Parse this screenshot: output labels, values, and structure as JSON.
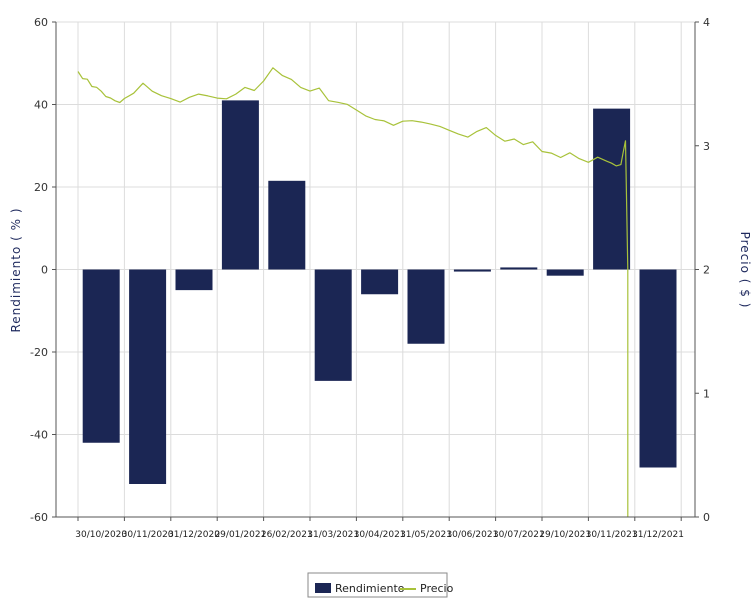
{
  "chart_data": {
    "type": "bar",
    "title": "",
    "ylabel": "Rendimiento (%)",
    "ylabel_display": "Rendimiento ( % )",
    "y2label": "Precio ($)",
    "y2label_display": "Precio ( $ )",
    "ylim": [
      -60,
      60
    ],
    "y2lim": [
      0,
      4
    ],
    "yticks": [
      -60,
      -40,
      -20,
      0,
      20,
      40,
      60
    ],
    "y2ticks": [
      0,
      1,
      2,
      3,
      4
    ],
    "grid": true,
    "legend_position": "bottom-center",
    "categories": [
      "30/10/2020",
      "30/11/2020",
      "31/12/2020",
      "29/01/2021",
      "26/02/2021",
      "31/03/2021",
      "30/04/2021",
      "31/05/2021",
      "30/06/2021",
      "30/07/2021",
      "29/10/2021",
      "30/11/2021",
      "31/12/2021"
    ],
    "series": [
      {
        "name": "Rendimiento",
        "type": "bar",
        "axis": "left",
        "color": "#1b2654",
        "values": [
          -42,
          -52,
          -5,
          41,
          21.5,
          -27,
          -6,
          -18,
          -0.5,
          0.5,
          -1.5,
          39,
          -48
        ]
      },
      {
        "name": "Precio",
        "type": "line",
        "axis": "right",
        "color": "#a8c23a",
        "x": [
          0,
          0.1,
          0.2,
          0.3,
          0.4,
          0.5,
          0.6,
          0.7,
          0.8,
          0.9,
          1.0,
          1.2,
          1.4,
          1.6,
          1.8,
          2.0,
          2.2,
          2.4,
          2.6,
          2.8,
          3.0,
          3.2,
          3.4,
          3.6,
          3.8,
          4.0,
          4.2,
          4.4,
          4.6,
          4.8,
          5.0,
          5.2,
          5.4,
          5.6,
          5.8,
          6.0,
          6.2,
          6.4,
          6.6,
          6.8,
          7.0,
          7.2,
          7.4,
          7.6,
          7.8,
          8.0,
          8.2,
          8.4,
          8.6,
          8.8,
          9.0,
          9.2,
          9.4,
          9.6,
          9.8,
          10.0,
          10.2,
          10.4,
          10.6,
          10.8,
          11.0,
          11.2,
          11.4,
          11.5,
          11.6,
          11.7,
          11.75,
          11.8,
          11.85,
          11.85
        ],
        "values": [
          3.6,
          3.55,
          3.53,
          3.48,
          3.47,
          3.44,
          3.4,
          3.38,
          3.36,
          3.35,
          3.39,
          3.43,
          3.5,
          3.45,
          3.41,
          3.38,
          3.36,
          3.39,
          3.42,
          3.4,
          3.39,
          3.38,
          3.42,
          3.47,
          3.44,
          3.52,
          3.63,
          3.56,
          3.53,
          3.47,
          3.45,
          3.47,
          3.36,
          3.35,
          3.33,
          3.29,
          3.25,
          3.22,
          3.2,
          3.17,
          3.2,
          3.21,
          3.19,
          3.17,
          3.16,
          3.13,
          3.09,
          3.07,
          3.11,
          3.14,
          3.08,
          3.03,
          3.06,
          3.01,
          3.03,
          2.96,
          2.94,
          2.9,
          2.94,
          2.89,
          2.86,
          2.9,
          2.88,
          2.85,
          2.83,
          2.84,
          2.95,
          3.04,
          2.0,
          0
        ]
      }
    ]
  }
}
